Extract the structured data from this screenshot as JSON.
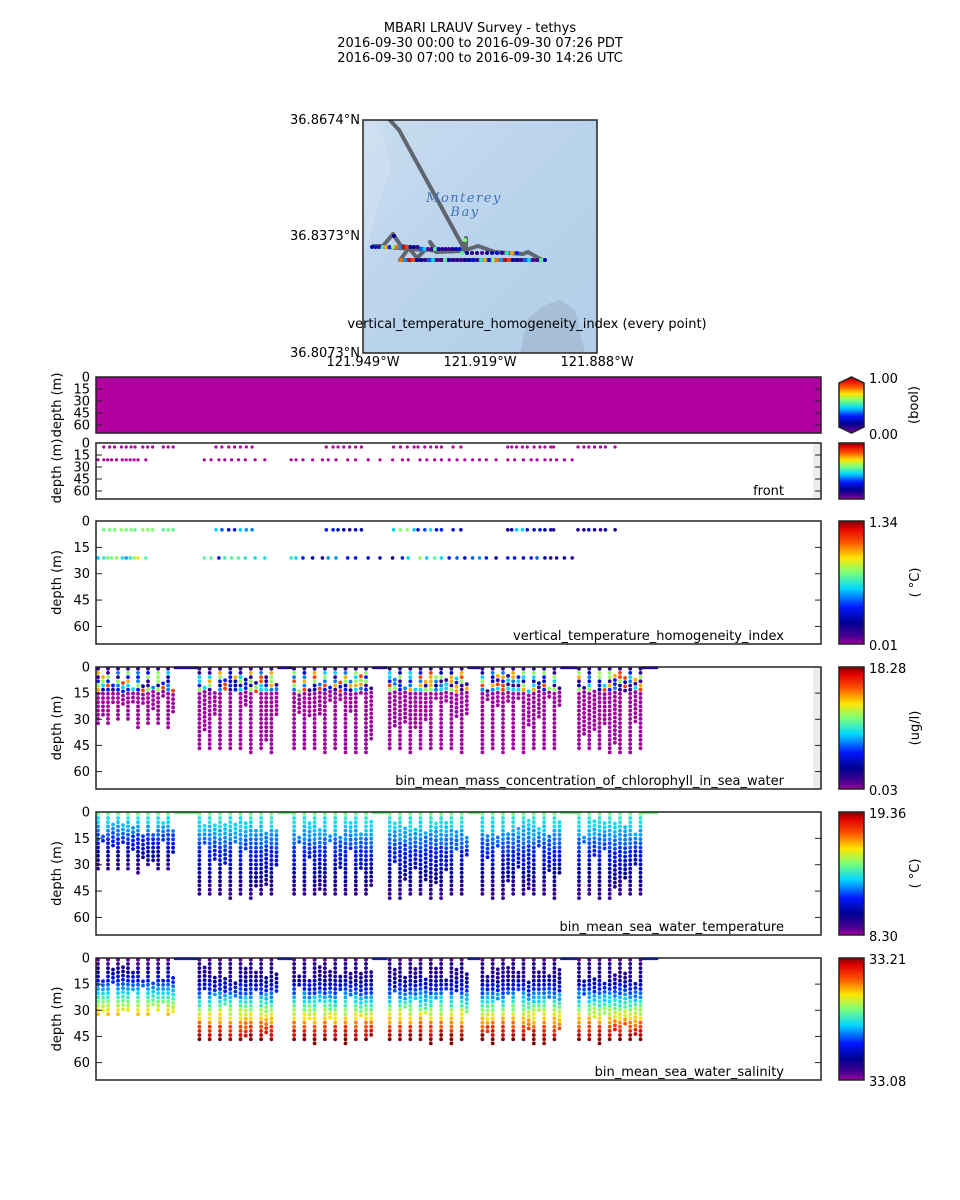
{
  "header": {
    "title": "MBARI LRAUV Survey - tethys",
    "line_pdt": "2016-09-30 00:00  to  2016-09-30 07:26 PDT",
    "line_utc": "2016-09-30 07:00  to  2016-09-30 14:26 UTC"
  },
  "map": {
    "place_label_1": "Monterey",
    "place_label_2": "Bay",
    "caption": "vertical_temperature_homogeneity_index (every point)",
    "lat_ticks": [
      "36.8674°N",
      "36.8373°N",
      "36.8073°N"
    ],
    "lon_ticks": [
      "121.949°W",
      "121.919°W",
      "121.888°W"
    ],
    "track_color": "#5f6670",
    "water_color": "#bcd6ee"
  },
  "chart_data": [
    {
      "type": "scatter",
      "title": "",
      "panel_label": "",
      "ylabel": "depth (m)",
      "yticks": [
        "0",
        "15",
        "30",
        "45",
        "60"
      ],
      "ylim": [
        70,
        0
      ],
      "xlim_hours": [
        0,
        7.43
      ],
      "fill": "#b000a0",
      "colorbar": {
        "max_label": "1.00",
        "min_label": "0.00",
        "unit": "(bool)",
        "extend": true
      }
    },
    {
      "type": "scatter",
      "panel_label": "front",
      "ylabel": "depth (m)",
      "yticks": [
        "0",
        "15",
        "30",
        "45",
        "60"
      ],
      "ylim": [
        70,
        0
      ],
      "xlim_hours": [
        0,
        7.43
      ],
      "rows_depth_m": [
        5,
        21
      ],
      "point_color": "#b000a0",
      "colorbar": {
        "max_label": "",
        "min_label": "",
        "unit": ""
      }
    },
    {
      "type": "scatter",
      "panel_label": "vertical_temperature_homogeneity_index",
      "ylabel": "depth (m)",
      "yticks": [
        "0",
        "15",
        "30",
        "45",
        "60"
      ],
      "ylim": [
        70,
        0
      ],
      "xlim_hours": [
        0,
        7.43
      ],
      "rows_depth_m": [
        5,
        21
      ],
      "vmin": 0.01,
      "vmax": 1.34,
      "colorbar": {
        "max_label": "1.34",
        "min_label": "0.01",
        "unit": "( °C)"
      }
    },
    {
      "type": "scatter",
      "panel_label": "bin_mean_mass_concentration_of_chlorophyll_in_sea_water",
      "ylabel": "depth (m)",
      "yticks": [
        "0",
        "15",
        "30",
        "45",
        "60"
      ],
      "ylim": [
        70,
        0
      ],
      "xlim_hours": [
        0,
        7.43
      ],
      "vmin": 0.03,
      "vmax": 18.28,
      "colorbar": {
        "max_label": "18.28",
        "min_label": "0.03",
        "unit": "(ug/l)"
      }
    },
    {
      "type": "scatter",
      "panel_label": "bin_mean_sea_water_temperature",
      "ylabel": "depth (m)",
      "yticks": [
        "0",
        "15",
        "30",
        "45",
        "60"
      ],
      "ylim": [
        70,
        0
      ],
      "xlim_hours": [
        0,
        7.43
      ],
      "vmin": 8.3,
      "vmax": 19.36,
      "colorbar": {
        "max_label": "19.36",
        "min_label": "8.30",
        "unit": "( °C)"
      }
    },
    {
      "type": "scatter",
      "panel_label": "bin_mean_sea_water_salinity",
      "ylabel": "depth (m)",
      "yticks": [
        "0",
        "15",
        "30",
        "45",
        "60"
      ],
      "ylim": [
        70,
        0
      ],
      "xlim_hours": [
        0,
        7.43
      ],
      "vmin": 33.08,
      "vmax": 33.21,
      "colorbar": {
        "max_label": "33.21",
        "min_label": "33.08",
        "unit": ""
      }
    }
  ],
  "profiles": {
    "segments_hours": [
      [
        0.02,
        0.79
      ],
      [
        1.06,
        1.85
      ],
      [
        2.03,
        2.82
      ],
      [
        3.01,
        3.8
      ],
      [
        3.96,
        4.75
      ],
      [
        4.95,
        5.58
      ]
    ],
    "max_depth_m": [
      35,
      50,
      50,
      50,
      50,
      50
    ],
    "surface_runs_hours": [
      [
        0.81,
        1.04
      ],
      [
        1.87,
        2.01
      ],
      [
        2.84,
        2.99
      ],
      [
        3.82,
        3.94
      ],
      [
        4.77,
        4.93
      ],
      [
        5.6,
        5.75
      ]
    ],
    "front_top_hours": [
      0.08,
      0.14,
      0.19,
      0.26,
      0.31,
      0.36,
      0.4,
      0.48,
      0.53,
      0.58,
      0.69,
      0.74,
      0.79,
      1.23,
      1.29,
      1.36,
      1.42,
      1.48,
      1.54,
      1.6,
      2.36,
      2.43,
      2.48,
      2.54,
      2.6,
      2.66,
      2.72,
      3.05,
      3.12,
      3.19,
      3.26,
      3.3,
      3.37,
      3.43,
      3.49,
      3.54,
      3.66,
      3.74,
      4.22,
      4.26,
      4.31,
      4.37,
      4.42,
      4.49,
      4.55,
      4.6,
      4.66,
      4.69,
      4.94,
      5.0,
      5.05,
      5.11,
      5.17,
      5.22,
      5.32
    ],
    "front_bottom_hours": [
      0.02,
      0.08,
      0.12,
      0.16,
      0.21,
      0.27,
      0.31,
      0.35,
      0.39,
      0.43,
      0.51,
      1.11,
      1.18,
      1.26,
      1.32,
      1.39,
      1.46,
      1.53,
      1.63,
      1.73,
      2.0,
      2.05,
      2.12,
      2.22,
      2.32,
      2.38,
      2.46,
      2.58,
      2.66,
      2.79,
      2.91,
      3.04,
      3.14,
      3.2,
      3.32,
      3.39,
      3.47,
      3.54,
      3.62,
      3.7,
      3.78,
      3.86,
      3.93,
      4.0,
      4.1,
      4.22,
      4.29,
      4.38,
      4.46,
      4.52,
      4.6,
      4.66,
      4.72,
      4.8,
      4.88
    ]
  }
}
